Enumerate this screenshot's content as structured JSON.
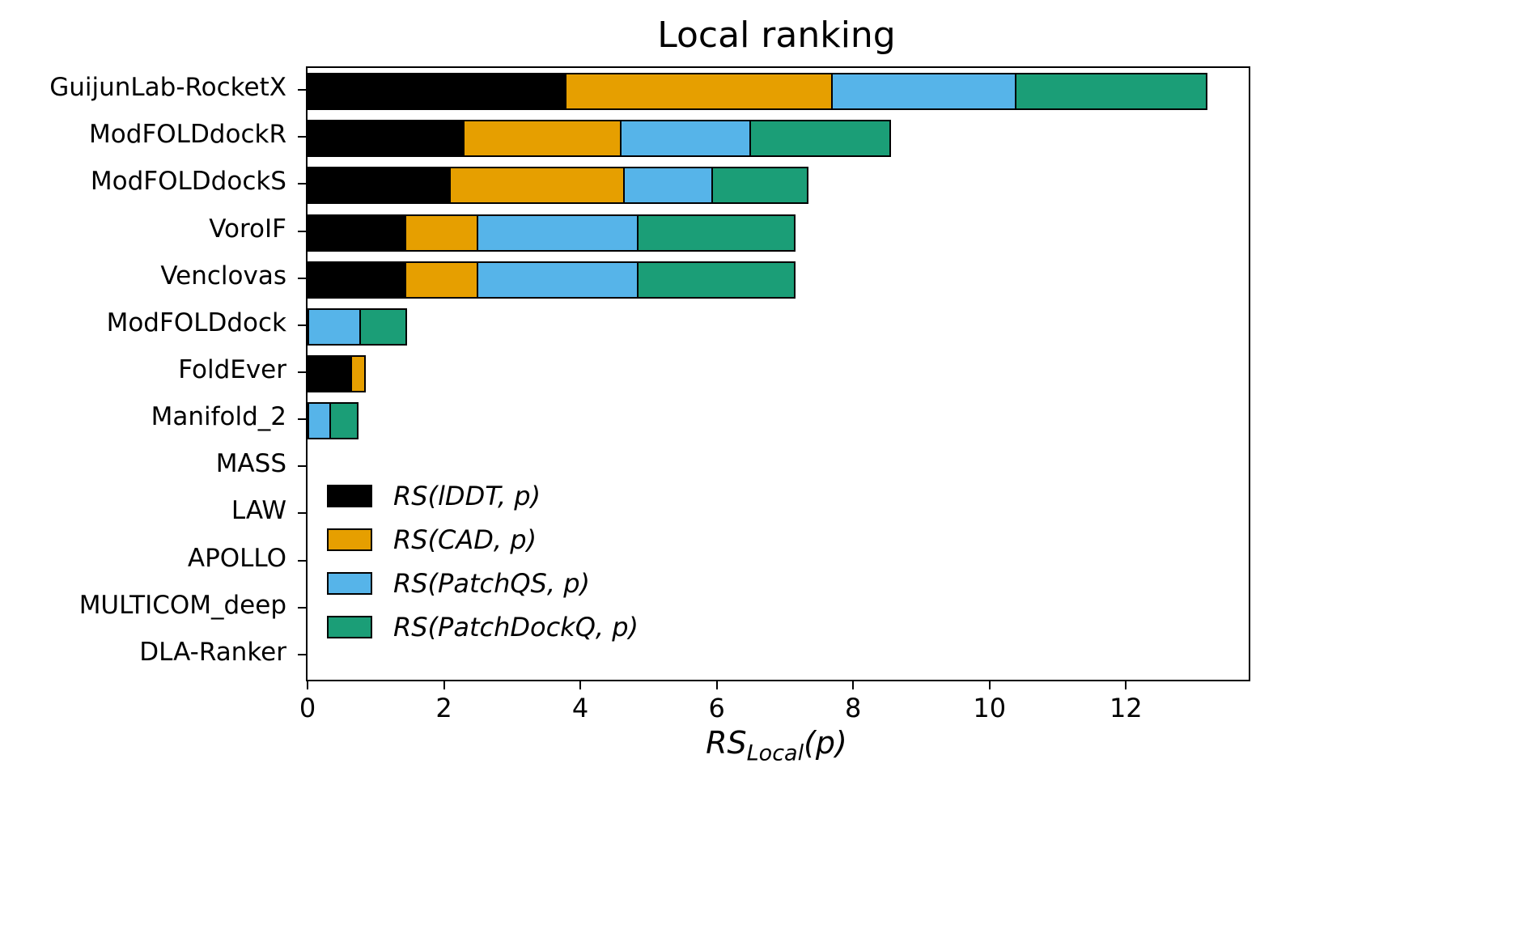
{
  "title": "Local ranking",
  "x_axis": {
    "label_base": "RS",
    "label_sub": "Local",
    "label_tail": "(p)"
  },
  "chart_data": {
    "type": "bar",
    "orientation": "horizontal",
    "stacked": true,
    "title": "Local ranking",
    "xlabel": "RS_Local(p)",
    "ylabel": "",
    "xlim": [
      0,
      13.8
    ],
    "xticks": [
      0,
      2,
      4,
      6,
      8,
      10,
      12
    ],
    "grid": false,
    "legend_position": "lower-left",
    "categories": [
      "GuijunLab-RocketX",
      "ModFOLDdockR",
      "ModFOLDdockS",
      "VoroIF",
      "Venclovas",
      "ModFOLDdock",
      "FoldEver",
      "Manifold_2",
      "MASS",
      "LAW",
      "APOLLO",
      "MULTICOM_deep",
      "DLA-Ranker"
    ],
    "series": [
      {
        "name": "RS(lDDT, p)",
        "color": "#000000",
        "values": [
          3.8,
          2.3,
          2.1,
          1.45,
          1.45,
          0,
          0.65,
          0,
          0,
          0,
          0,
          0,
          0
        ]
      },
      {
        "name": "RS(CAD, p)",
        "color": "#E69F00",
        "values": [
          3.9,
          2.3,
          2.55,
          1.05,
          1.05,
          0,
          0.2,
          0,
          0,
          0,
          0,
          0,
          0
        ]
      },
      {
        "name": "RS(PatchQS, p)",
        "color": "#56B4E9",
        "values": [
          2.7,
          1.9,
          1.3,
          2.35,
          2.35,
          0.78,
          0,
          0.35,
          0,
          0,
          0,
          0,
          0
        ]
      },
      {
        "name": "RS(PatchDockQ, p)",
        "color": "#1B9E77",
        "values": [
          2.8,
          2.05,
          1.4,
          2.3,
          2.3,
          0.68,
          0,
          0.4,
          0,
          0,
          0,
          0,
          0
        ]
      }
    ]
  }
}
